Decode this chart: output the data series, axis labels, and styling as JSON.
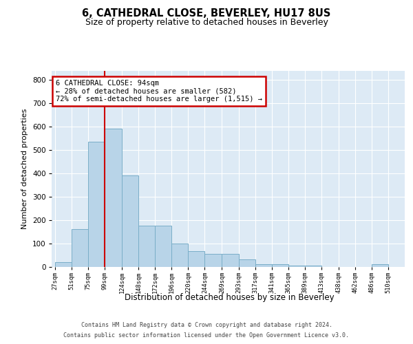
{
  "title": "6, CATHEDRAL CLOSE, BEVERLEY, HU17 8US",
  "subtitle": "Size of property relative to detached houses in Beverley",
  "xlabel": "Distribution of detached houses by size in Beverley",
  "ylabel": "Number of detached properties",
  "bar_values": [
    20,
    160,
    535,
    590,
    390,
    175,
    175,
    100,
    65,
    55,
    55,
    30,
    10,
    10,
    5,
    5,
    0,
    0,
    0,
    10
  ],
  "bar_left_edges": [
    27,
    51,
    75,
    99,
    124,
    148,
    172,
    196,
    220,
    244,
    269,
    293,
    317,
    341,
    365,
    389,
    413,
    438,
    462,
    486
  ],
  "bar_width_list": [
    24,
    24,
    24,
    25,
    24,
    24,
    24,
    24,
    24,
    25,
    24,
    24,
    24,
    24,
    24,
    24,
    25,
    24,
    24,
    24
  ],
  "xlabels": [
    "27sqm",
    "51sqm",
    "75sqm",
    "99sqm",
    "124sqm",
    "148sqm",
    "172sqm",
    "196sqm",
    "220sqm",
    "244sqm",
    "269sqm",
    "293sqm",
    "317sqm",
    "341sqm",
    "365sqm",
    "389sqm",
    "413sqm",
    "438sqm",
    "462sqm",
    "486sqm",
    "510sqm"
  ],
  "xtick_positions": [
    27,
    51,
    75,
    99,
    124,
    148,
    172,
    196,
    220,
    244,
    269,
    293,
    317,
    341,
    365,
    389,
    413,
    438,
    462,
    486,
    510
  ],
  "bar_color": "#b8d4e8",
  "bar_edge_color": "#7aaec8",
  "vline_x": 99,
  "vline_color": "#cc0000",
  "annotation_line1": "6 CATHEDRAL CLOSE: 94sqm",
  "annotation_line2": "← 28% of detached houses are smaller (582)",
  "annotation_line3": "72% of semi-detached houses are larger (1,515) →",
  "annotation_box_edgecolor": "#cc0000",
  "ylim_max": 840,
  "yticks": [
    0,
    100,
    200,
    300,
    400,
    500,
    600,
    700,
    800
  ],
  "footer_line1": "Contains HM Land Registry data © Crown copyright and database right 2024.",
  "footer_line2": "Contains public sector information licensed under the Open Government Licence v3.0.",
  "plot_bg_color": "#ddeaf5",
  "fig_bg_color": "#ffffff",
  "grid_color": "#ffffff"
}
